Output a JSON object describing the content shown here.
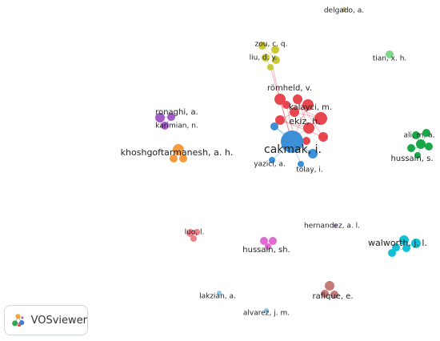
{
  "app": {
    "name": "VOSviewer",
    "logo_icon": "vosviewer-logo-icon"
  },
  "clusters": [
    {
      "id": "red",
      "color": "#e8454f"
    },
    {
      "id": "blue",
      "color": "#3d8fd6"
    },
    {
      "id": "green",
      "color": "#1aa74a"
    },
    {
      "id": "yellow",
      "color": "#c8c934"
    },
    {
      "id": "purple",
      "color": "#a35bc7"
    },
    {
      "id": "orange",
      "color": "#f59b3d"
    },
    {
      "id": "cyan",
      "color": "#12c0d6"
    },
    {
      "id": "pink",
      "color": "#ef7f88"
    },
    {
      "id": "magenta",
      "color": "#e26ad2"
    },
    {
      "id": "brown",
      "color": "#c57b78"
    },
    {
      "id": "lightgreen",
      "color": "#7ed88b"
    },
    {
      "id": "lightblue",
      "color": "#8ec8ea"
    },
    {
      "id": "olive",
      "color": "#c8b877"
    },
    {
      "id": "lavender",
      "color": "#c7b3e4"
    }
  ],
  "labels": [
    {
      "text": "delgado, a.",
      "cluster": "olive"
    },
    {
      "text": "zou, c. q.",
      "cluster": "yellow"
    },
    {
      "text": "liu, d. y.",
      "cluster": "yellow"
    },
    {
      "text": "tian, x. h.",
      "cluster": "lightgreen"
    },
    {
      "text": "römheld, v.",
      "cluster": "red"
    },
    {
      "text": "ronaghi, a.",
      "cluster": "purple"
    },
    {
      "text": "kalayci, m.",
      "cluster": "red"
    },
    {
      "text": "karimian, n.",
      "cluster": "purple"
    },
    {
      "text": "ekiz, h.",
      "cluster": "red"
    },
    {
      "text": "ali, m. a.",
      "cluster": "green"
    },
    {
      "text": "cakmak, i.",
      "cluster": "blue"
    },
    {
      "text": "khoshgoftarmanesh, a. h.",
      "cluster": "orange"
    },
    {
      "text": "hussain, s.",
      "cluster": "green"
    },
    {
      "text": "yazici, a.",
      "cluster": "blue"
    },
    {
      "text": "tolay, i.",
      "cluster": "blue"
    },
    {
      "text": "hernandez, a. l.",
      "cluster": "lavender"
    },
    {
      "text": "luo, l.",
      "cluster": "pink"
    },
    {
      "text": "walworth, j. l.",
      "cluster": "cyan"
    },
    {
      "text": "hussain, sh.",
      "cluster": "magenta"
    },
    {
      "text": "lakzian, a.",
      "cluster": "lightblue"
    },
    {
      "text": "rafique, e.",
      "cluster": "brown"
    },
    {
      "text": "alvarez, j. m.",
      "cluster": "lightblue"
    }
  ]
}
